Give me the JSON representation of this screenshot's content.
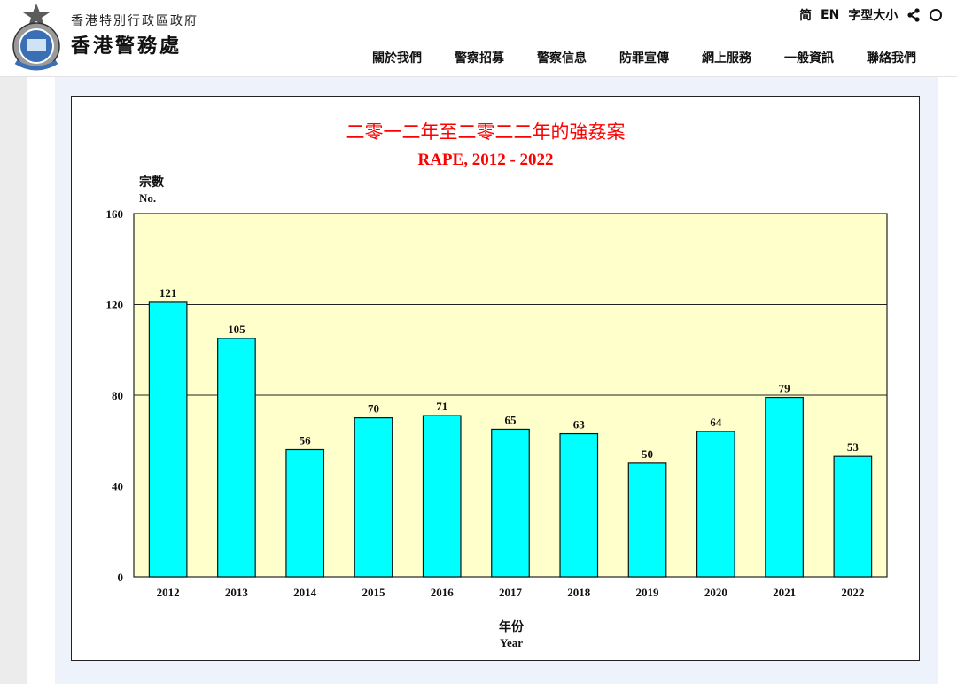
{
  "header": {
    "org_sub": "香港特別行政區政府",
    "org_main": "香港警務處",
    "logo_icon": "police-emblem-icon",
    "utilities": [
      "简",
      "EN",
      "字型大小"
    ],
    "share_icon": "share-icon",
    "nav": [
      "關於我們",
      "警察招募",
      "警察信息",
      "防罪宣傳",
      "網上服務",
      "一般資訊",
      "聯絡我們"
    ]
  },
  "colors": {
    "bar": "#00ffff",
    "plot_bg": "#ffffcc",
    "title": "#ff0000",
    "panel_bg": "#eef3fb"
  },
  "chart_data": {
    "type": "bar",
    "title_zh": "二零一二年至二零二二年的強姦案",
    "title_en": "RAPE, 2012 - 2022",
    "ylabel_zh": "宗數",
    "ylabel_en": "No.",
    "xlabel_zh": "年份",
    "xlabel_en": "Year",
    "categories": [
      "2012",
      "2013",
      "2014",
      "2015",
      "2016",
      "2017",
      "2018",
      "2019",
      "2020",
      "2021",
      "2022"
    ],
    "values": [
      121,
      105,
      56,
      70,
      71,
      65,
      63,
      50,
      64,
      79,
      53
    ],
    "ylim": [
      0,
      160
    ],
    "yticks": [
      0,
      40,
      80,
      120,
      160
    ],
    "grid": true,
    "legend": "none"
  }
}
